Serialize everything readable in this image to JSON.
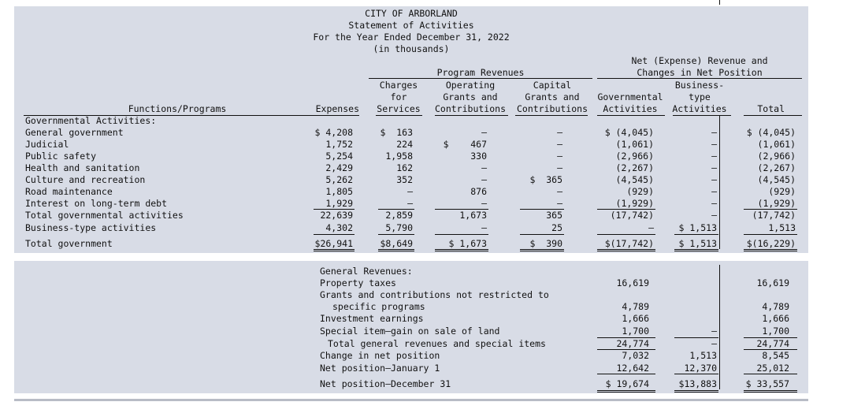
{
  "header": {
    "line1": "CITY OF ARBORLAND",
    "line2": "Statement of Activities",
    "line3": "For the Year Ended December 31, 2022",
    "line4": "(in thousands)"
  },
  "columns": {
    "functions": "Functions/Programs",
    "expenses": "Expenses",
    "program_revenues": "Program Revenues",
    "charges": [
      "Charges",
      "for",
      "Services"
    ],
    "operating": [
      "Operating",
      "Grants and",
      "Contributions"
    ],
    "capital": [
      "Capital",
      "Grants and",
      "Contributions"
    ],
    "net_header": [
      "Net (Expense) Revenue and",
      "Changes in Net Position"
    ],
    "governmental": [
      "Governmental",
      "Activities"
    ],
    "business": [
      "Business-",
      "type",
      "Activities"
    ],
    "total": "Total"
  },
  "section_label": "Governmental Activities:",
  "rows": [
    {
      "name": "General government",
      "exp": "$ 4,208",
      "chg": "$  163",
      "op": "–",
      "cap": "–",
      "gov": "$ (4,045)",
      "bus": "–",
      "tot": "$ (4,045)"
    },
    {
      "name": "Judicial",
      "exp": "1,752",
      "chg": "224",
      "op": "$    467",
      "cap": "–",
      "gov": "(1,061)",
      "bus": "–",
      "tot": "(1,061)"
    },
    {
      "name": "Public safety",
      "exp": "5,254",
      "chg": "1,958",
      "op": "330",
      "cap": "–",
      "gov": "(2,966)",
      "bus": "–",
      "tot": "(2,966)"
    },
    {
      "name": "Health and sanitation",
      "exp": "2,429",
      "chg": "162",
      "op": "–",
      "cap": "–",
      "gov": "(2,267)",
      "bus": "–",
      "tot": "(2,267)"
    },
    {
      "name": "Culture and recreation",
      "exp": "5,262",
      "chg": "352",
      "op": "–",
      "cap": "$  365",
      "gov": "(4,545)",
      "bus": "–",
      "tot": "(4,545)"
    },
    {
      "name": "Road maintenance",
      "exp": "1,805",
      "chg": "–",
      "op": "876",
      "cap": "–",
      "gov": "(929)",
      "bus": "–",
      "tot": "(929)"
    },
    {
      "name": "Interest on long-term debt",
      "exp": "1,929",
      "chg": "–",
      "op": "–",
      "cap": "–",
      "gov": "(1,929)",
      "bus": "–",
      "tot": "(1,929)"
    },
    {
      "name": "Total governmental activities",
      "exp": "22,639",
      "chg": "2,859",
      "op": "1,673",
      "cap": "365",
      "gov": "(17,742)",
      "bus": "–",
      "tot": "(17,742)"
    },
    {
      "name": "Business-type activities",
      "exp": "4,302",
      "chg": "5,790",
      "op": "–",
      "cap": "25",
      "gov": "–",
      "bus": "$ 1,513",
      "tot": "1,513"
    },
    {
      "name": "Total government",
      "exp": "$26,941",
      "chg": "$8,649",
      "op": "$ 1,673",
      "cap": "$  390",
      "gov": "$(17,742)",
      "bus": "$ 1,513",
      "tot": "$(16,229)"
    }
  ],
  "general": {
    "title": "General Revenues:",
    "property": {
      "label": "Property taxes",
      "gov": "16,619",
      "tot": "16,619"
    },
    "grants_label1": "Grants and contributions not restricted to",
    "grants": {
      "label": "specific programs",
      "gov": "4,789",
      "tot": "4,789"
    },
    "investment": {
      "label": "Investment earnings",
      "gov": "1,666",
      "tot": "1,666"
    },
    "special": {
      "label": "Special item—gain on sale of land",
      "gov": "1,700",
      "bus": "–",
      "tot": "1,700"
    },
    "total_general": {
      "label": "Total general revenues and special items",
      "gov": "24,774",
      "bus": "–",
      "tot": "24,774"
    },
    "change": {
      "label": "Change in net position",
      "gov": "7,032",
      "bus": "1,513",
      "tot": "8,545"
    },
    "jan1": {
      "label": "Net position—January 1",
      "gov": "12,642",
      "bus": "12,370",
      "tot": "25,012"
    },
    "dec31": {
      "label": "Net position—December 31",
      "gov": "$ 19,674",
      "bus": "$13,883",
      "tot": "$ 33,557"
    }
  }
}
